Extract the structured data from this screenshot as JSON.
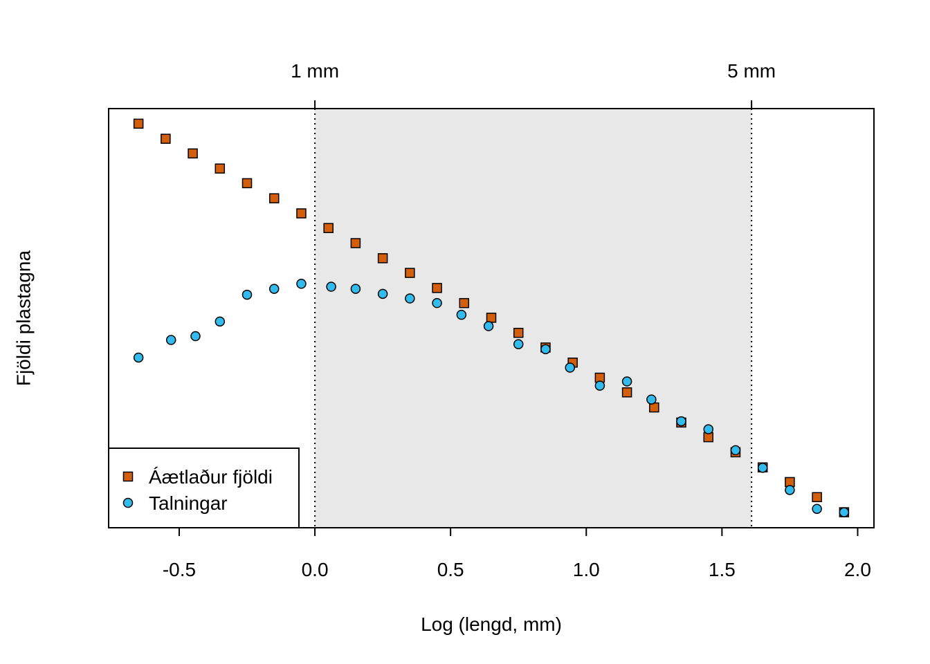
{
  "chart_data": {
    "type": "scatter",
    "xlabel": "Log (lengd, mm)",
    "ylabel": "Fjöldi plastagna",
    "xlim": [
      -0.76,
      2.06
    ],
    "ylim": [
      0.0,
      1.0
    ],
    "x_ticks": [
      "-0.5",
      "0.0",
      "0.5",
      "1.0",
      "1.5",
      "2.0"
    ],
    "x_tick_values": [
      -0.5,
      0.0,
      0.5,
      1.0,
      1.5,
      2.0
    ],
    "y_ticks_shown": false,
    "top_axis": {
      "ticks": [
        {
          "label": "1 mm",
          "value": 0.0
        },
        {
          "label": "5 mm",
          "value": 1.609
        }
      ]
    },
    "shaded_region": {
      "from": 0.0,
      "to": 1.609,
      "color": "#e8e8e8"
    },
    "reference_lines": [
      0.0,
      1.609
    ],
    "legend": {
      "placement": "bottom-left"
    },
    "series": [
      {
        "name": "Áætlaður fjöldi",
        "marker": "square",
        "color": "#d35f0c",
        "points": [
          [
            -0.65,
            0.964
          ],
          [
            -0.55,
            0.928
          ],
          [
            -0.45,
            0.893
          ],
          [
            -0.35,
            0.857
          ],
          [
            -0.25,
            0.822
          ],
          [
            -0.15,
            0.786
          ],
          [
            -0.05,
            0.75
          ],
          [
            0.05,
            0.715
          ],
          [
            0.15,
            0.679
          ],
          [
            0.25,
            0.643
          ],
          [
            0.35,
            0.608
          ],
          [
            0.45,
            0.572
          ],
          [
            0.55,
            0.536
          ],
          [
            0.65,
            0.501
          ],
          [
            0.75,
            0.465
          ],
          [
            0.85,
            0.43
          ],
          [
            0.95,
            0.394
          ],
          [
            1.05,
            0.358
          ],
          [
            1.15,
            0.323
          ],
          [
            1.25,
            0.287
          ],
          [
            1.35,
            0.251
          ],
          [
            1.45,
            0.216
          ],
          [
            1.55,
            0.18
          ],
          [
            1.65,
            0.144
          ],
          [
            1.75,
            0.109
          ],
          [
            1.85,
            0.073
          ],
          [
            1.95,
            0.037
          ]
        ]
      },
      {
        "name": "Talningar",
        "marker": "circle",
        "color": "#33bbee",
        "points": [
          [
            -0.65,
            0.406
          ],
          [
            -0.53,
            0.448
          ],
          [
            -0.44,
            0.457
          ],
          [
            -0.35,
            0.492
          ],
          [
            -0.25,
            0.556
          ],
          [
            -0.15,
            0.57
          ],
          [
            -0.05,
            0.582
          ],
          [
            0.06,
            0.575
          ],
          [
            0.15,
            0.57
          ],
          [
            0.25,
            0.558
          ],
          [
            0.35,
            0.547
          ],
          [
            0.45,
            0.536
          ],
          [
            0.54,
            0.508
          ],
          [
            0.64,
            0.481
          ],
          [
            0.75,
            0.438
          ],
          [
            0.85,
            0.426
          ],
          [
            0.94,
            0.382
          ],
          [
            1.05,
            0.339
          ],
          [
            1.15,
            0.349
          ],
          [
            1.24,
            0.306
          ],
          [
            1.35,
            0.254
          ],
          [
            1.45,
            0.235
          ],
          [
            1.55,
            0.185
          ],
          [
            1.65,
            0.143
          ],
          [
            1.75,
            0.09
          ],
          [
            1.85,
            0.045
          ],
          [
            1.95,
            0.037
          ]
        ]
      }
    ]
  }
}
